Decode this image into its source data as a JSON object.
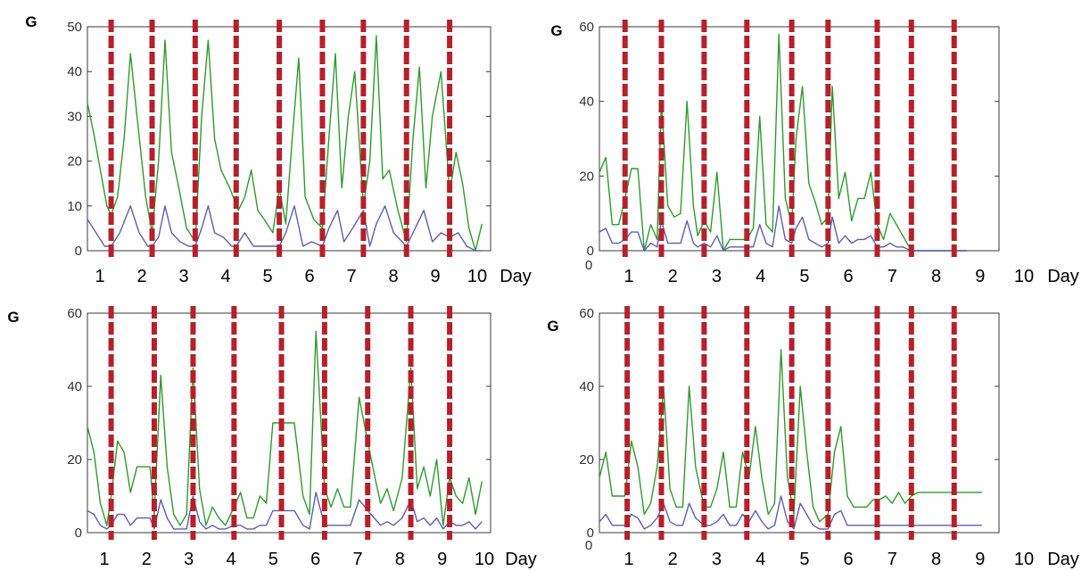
{
  "chart_data": [
    {
      "type": "line",
      "ylabel": "G",
      "xlabel": "Day",
      "x_tick_labels": [
        "1",
        "2",
        "3",
        "4",
        "5",
        "6",
        "7",
        "8",
        "9",
        "10"
      ],
      "y_ticks": [
        0,
        10,
        20,
        30,
        40,
        50
      ],
      "ylim": [
        0,
        50
      ],
      "x_origin_label": "",
      "day_boundaries": [
        1.55,
        2.5,
        3.5,
        4.45,
        5.45,
        6.45,
        7.4,
        8.4,
        9.4
      ],
      "series": [
        {
          "color": "#2e9a2e",
          "x": [
            1,
            1.15,
            1.3,
            1.45,
            1.55,
            1.7,
            1.85,
            2,
            2.15,
            2.35,
            2.5,
            2.65,
            2.8,
            2.95,
            3.1,
            3.3,
            3.5,
            3.65,
            3.8,
            3.95,
            4.1,
            4.3,
            4.5,
            4.65,
            4.8,
            4.95,
            5.1,
            5.3,
            5.45,
            5.6,
            5.75,
            5.9,
            6.05,
            6.25,
            6.45,
            6.6,
            6.75,
            6.9,
            7.05,
            7.2,
            7.4,
            7.55,
            7.7,
            7.85,
            8,
            8.2,
            8.4,
            8.55,
            8.7,
            8.85,
            9,
            9.2,
            9.4,
            9.55,
            9.7,
            9.85,
            10,
            10.15
          ],
          "y": [
            33,
            26,
            18,
            10,
            8,
            12,
            25,
            44,
            30,
            12,
            4,
            20,
            47,
            22,
            15,
            5,
            2,
            30,
            47,
            25,
            18,
            14,
            9,
            12,
            18,
            9,
            7,
            4,
            14,
            6,
            25,
            43,
            12,
            7,
            5,
            25,
            44,
            14,
            30,
            40,
            10,
            20,
            48,
            16,
            18,
            9,
            2,
            25,
            41,
            14,
            30,
            40,
            13,
            22,
            15,
            5,
            0,
            6
          ]
        },
        {
          "color": "#5b5fb0",
          "x": [
            1,
            1.2,
            1.4,
            1.55,
            1.75,
            2,
            2.2,
            2.4,
            2.5,
            2.65,
            2.8,
            2.95,
            3.15,
            3.35,
            3.5,
            3.65,
            3.8,
            3.95,
            4.15,
            4.35,
            4.45,
            4.65,
            4.85,
            5.05,
            5.25,
            5.45,
            5.6,
            5.8,
            6,
            6.2,
            6.45,
            6.6,
            6.8,
            6.95,
            7.15,
            7.4,
            7.55,
            7.7,
            7.9,
            8.1,
            8.4,
            8.6,
            8.8,
            9,
            9.2,
            9.4,
            9.6,
            9.8,
            10,
            10.15
          ],
          "y": [
            7,
            4,
            1,
            1,
            4,
            10,
            4,
            1,
            1,
            3,
            10,
            4,
            2,
            1,
            1,
            5,
            10,
            4,
            3,
            1,
            1,
            4,
            1,
            1,
            1,
            1,
            4,
            10,
            1,
            2,
            1,
            5,
            9,
            2,
            5,
            9,
            1,
            6,
            10,
            4,
            1,
            5,
            9,
            2,
            4,
            3,
            4,
            1,
            0,
            0
          ]
        }
      ]
    },
    {
      "type": "line",
      "ylabel": "G",
      "xlabel": "Day",
      "x_tick_labels": [
        "1",
        "2",
        "3",
        "4",
        "5",
        "6",
        "7",
        "8",
        "9",
        "10"
      ],
      "y_ticks": [
        0,
        20,
        40,
        60
      ],
      "ylim": [
        0,
        60
      ],
      "x_origin_label": "0",
      "day_boundaries": [
        1.6,
        2.45,
        3.45,
        4.45,
        5.5,
        6.35,
        7.5,
        8.3,
        9.3
      ],
      "series": [
        {
          "color": "#2e9a2e",
          "x": [
            1,
            1.15,
            1.3,
            1.45,
            1.6,
            1.75,
            1.9,
            2.05,
            2.2,
            2.35,
            2.45,
            2.6,
            2.75,
            2.9,
            3.05,
            3.2,
            3.3,
            3.45,
            3.6,
            3.75,
            3.9,
            4.05,
            4.2,
            4.35,
            4.45,
            4.6,
            4.75,
            4.9,
            5.05,
            5.2,
            5.35,
            5.5,
            5.6,
            5.75,
            5.9,
            6.05,
            6.2,
            6.35,
            6.45,
            6.6,
            6.75,
            6.9,
            7.05,
            7.2,
            7.35,
            7.5,
            7.65,
            7.8,
            7.95,
            8.1,
            8.3,
            8.45,
            8.6,
            8.75,
            8.9,
            9.05,
            9.2,
            9.3,
            9.45,
            9.6
          ],
          "y": [
            21,
            25,
            7,
            7,
            14,
            22,
            22,
            0,
            7,
            3,
            40,
            12,
            9,
            10,
            40,
            12,
            4,
            8,
            5,
            21,
            0,
            3,
            3,
            3,
            3,
            6,
            36,
            7,
            5,
            58,
            14,
            7,
            30,
            44,
            18,
            13,
            7,
            9,
            44,
            14,
            21,
            8,
            14,
            14,
            21,
            7,
            3,
            10,
            7,
            4,
            0,
            0,
            0,
            0,
            0,
            0,
            0,
            0,
            0,
            0
          ]
        },
        {
          "color": "#5b5fb0",
          "x": [
            1,
            1.15,
            1.3,
            1.45,
            1.6,
            1.75,
            1.9,
            2.05,
            2.2,
            2.35,
            2.45,
            2.6,
            2.75,
            2.9,
            3.05,
            3.2,
            3.3,
            3.45,
            3.6,
            3.75,
            3.9,
            4.05,
            4.2,
            4.35,
            4.45,
            4.6,
            4.75,
            4.9,
            5.05,
            5.2,
            5.35,
            5.5,
            5.6,
            5.75,
            5.9,
            6.05,
            6.2,
            6.35,
            6.45,
            6.6,
            6.75,
            6.9,
            7.05,
            7.2,
            7.35,
            7.5,
            7.65,
            7.8,
            7.95,
            8.1,
            8.3,
            8.45,
            8.6,
            8.75,
            8.9,
            9.05,
            9.2,
            9.3,
            9.45,
            9.6
          ],
          "y": [
            5,
            6,
            2,
            2,
            3,
            5,
            5,
            0,
            2,
            1,
            8,
            2,
            2,
            2,
            8,
            2,
            1,
            2,
            1,
            4,
            0,
            1,
            1,
            1,
            1,
            1,
            7,
            2,
            1,
            12,
            3,
            2,
            6,
            9,
            3,
            2,
            1,
            2,
            9,
            2,
            4,
            2,
            3,
            3,
            4,
            1,
            1,
            2,
            1,
            1,
            0,
            0,
            0,
            0,
            0,
            0,
            0,
            0,
            0,
            0
          ]
        }
      ]
    },
    {
      "type": "line",
      "ylabel": "G",
      "xlabel": "Day",
      "x_tick_labels": [
        "1",
        "2",
        "3",
        "4",
        "5",
        "6",
        "7",
        "8",
        "9",
        "10"
      ],
      "y_ticks": [
        0,
        20,
        40,
        60
      ],
      "ylim": [
        0,
        60
      ],
      "x_origin_label": "",
      "day_boundaries": [
        1.55,
        2.55,
        3.45,
        4.4,
        5.5,
        6.5,
        7.5,
        8.5,
        9.4
      ],
      "series": [
        {
          "color": "#2e9a2e",
          "x": [
            1,
            1.15,
            1.3,
            1.45,
            1.55,
            1.7,
            1.85,
            2,
            2.15,
            2.3,
            2.45,
            2.55,
            2.7,
            2.85,
            3,
            3.15,
            3.3,
            3.45,
            3.6,
            3.75,
            3.9,
            4.05,
            4.2,
            4.4,
            4.55,
            4.7,
            4.85,
            5,
            5.15,
            5.3,
            5.5,
            5.65,
            5.8,
            6,
            6.15,
            6.3,
            6.5,
            6.65,
            6.8,
            6.95,
            7.1,
            7.3,
            7.5,
            7.65,
            7.8,
            7.95,
            8.1,
            8.3,
            8.5,
            8.65,
            8.8,
            8.95,
            9.1,
            9.25,
            9.4,
            9.55,
            9.7,
            9.85,
            10,
            10.15
          ],
          "y": [
            29,
            22,
            8,
            2,
            10,
            25,
            22,
            11,
            18,
            18,
            18,
            5,
            43,
            18,
            5,
            2,
            5,
            45,
            12,
            2,
            7,
            4,
            2,
            7,
            11,
            4,
            4,
            10,
            8,
            30,
            30,
            30,
            30,
            10,
            5,
            55,
            12,
            7,
            12,
            7,
            7,
            37,
            25,
            16,
            8,
            12,
            6,
            15,
            45,
            12,
            18,
            10,
            20,
            2,
            15,
            10,
            8,
            15,
            5,
            14
          ]
        },
        {
          "color": "#5b5fb0",
          "x": [
            1,
            1.15,
            1.3,
            1.45,
            1.55,
            1.7,
            1.85,
            2,
            2.15,
            2.3,
            2.45,
            2.55,
            2.7,
            2.85,
            3,
            3.15,
            3.3,
            3.45,
            3.6,
            3.75,
            3.9,
            4.05,
            4.2,
            4.4,
            4.55,
            4.7,
            4.85,
            5,
            5.15,
            5.3,
            5.5,
            5.65,
            5.8,
            6,
            6.15,
            6.3,
            6.5,
            6.65,
            6.8,
            6.95,
            7.1,
            7.3,
            7.5,
            7.65,
            7.8,
            7.95,
            8.1,
            8.3,
            8.5,
            8.65,
            8.8,
            8.95,
            9.1,
            9.25,
            9.4,
            9.55,
            9.7,
            9.85,
            10,
            10.15
          ],
          "y": [
            6,
            5,
            2,
            1,
            2,
            5,
            5,
            2,
            4,
            4,
            4,
            1,
            9,
            4,
            1,
            1,
            1,
            10,
            3,
            1,
            2,
            1,
            1,
            2,
            2,
            1,
            1,
            2,
            2,
            6,
            6,
            6,
            6,
            2,
            1,
            11,
            2,
            2,
            2,
            2,
            2,
            9,
            6,
            4,
            2,
            3,
            2,
            4,
            9,
            3,
            4,
            2,
            4,
            1,
            3,
            2,
            2,
            3,
            1,
            3
          ]
        }
      ]
    },
    {
      "type": "line",
      "ylabel": "G",
      "xlabel": "Day",
      "x_tick_labels": [
        "1",
        "2",
        "3",
        "4",
        "5",
        "6",
        "7",
        "8",
        "9",
        "10"
      ],
      "y_ticks": [
        0,
        20,
        40,
        60
      ],
      "ylim": [
        0,
        60
      ],
      "x_origin_label": "0",
      "day_boundaries": [
        1.65,
        2.45,
        3.45,
        4.45,
        5.5,
        6.35,
        7.5,
        8.3,
        9.3
      ],
      "series": [
        {
          "color": "#2e9a2e",
          "x": [
            1,
            1.15,
            1.3,
            1.45,
            1.6,
            1.75,
            1.9,
            2.05,
            2.2,
            2.35,
            2.5,
            2.65,
            2.8,
            2.95,
            3.1,
            3.25,
            3.45,
            3.6,
            3.75,
            3.9,
            4.05,
            4.2,
            4.35,
            4.5,
            4.65,
            4.8,
            4.95,
            5.1,
            5.25,
            5.4,
            5.55,
            5.7,
            5.85,
            6,
            6.15,
            6.35,
            6.5,
            6.65,
            6.8,
            6.95,
            7.1,
            7.25,
            7.4,
            7.55,
            7.7,
            7.85,
            8,
            8.15,
            8.3,
            8.45,
            8.6,
            8.75,
            8.9,
            9.05,
            9.2,
            9.35,
            9.5,
            9.65,
            9.8,
            9.95
          ],
          "y": [
            15,
            22,
            10,
            10,
            10,
            25,
            18,
            5,
            8,
            18,
            40,
            12,
            7,
            7,
            40,
            18,
            7,
            7,
            12,
            22,
            7,
            7,
            22,
            15,
            29,
            15,
            5,
            8,
            50,
            15,
            5,
            40,
            22,
            7,
            3,
            5,
            22,
            29,
            10,
            7,
            7,
            7,
            9,
            9,
            10,
            8,
            11,
            8,
            10,
            11,
            11,
            11,
            11,
            11,
            11,
            11,
            11,
            11,
            11,
            11
          ]
        },
        {
          "color": "#5b5fb0",
          "x": [
            1,
            1.15,
            1.3,
            1.45,
            1.6,
            1.75,
            1.9,
            2.05,
            2.2,
            2.35,
            2.5,
            2.65,
            2.8,
            2.95,
            3.1,
            3.25,
            3.45,
            3.6,
            3.75,
            3.9,
            4.05,
            4.2,
            4.35,
            4.5,
            4.65,
            4.8,
            4.95,
            5.1,
            5.25,
            5.4,
            5.55,
            5.7,
            5.85,
            6,
            6.15,
            6.35,
            6.5,
            6.65,
            6.8,
            6.95,
            7.1,
            7.25,
            7.4,
            7.55,
            7.7,
            7.85,
            8,
            8.15,
            8.3,
            8.45,
            8.6,
            8.75,
            8.9,
            9.05,
            9.2,
            9.35,
            9.5,
            9.65,
            9.8,
            9.95
          ],
          "y": [
            3,
            5,
            2,
            2,
            2,
            5,
            4,
            1,
            2,
            4,
            8,
            3,
            2,
            2,
            8,
            4,
            2,
            2,
            3,
            5,
            2,
            2,
            5,
            3,
            6,
            3,
            1,
            2,
            10,
            3,
            1,
            8,
            5,
            2,
            1,
            1,
            5,
            6,
            2,
            2,
            2,
            2,
            2,
            2,
            2,
            2,
            2,
            2,
            2,
            2,
            2,
            2,
            2,
            2,
            2,
            2,
            2,
            2,
            2,
            2
          ]
        }
      ]
    }
  ]
}
